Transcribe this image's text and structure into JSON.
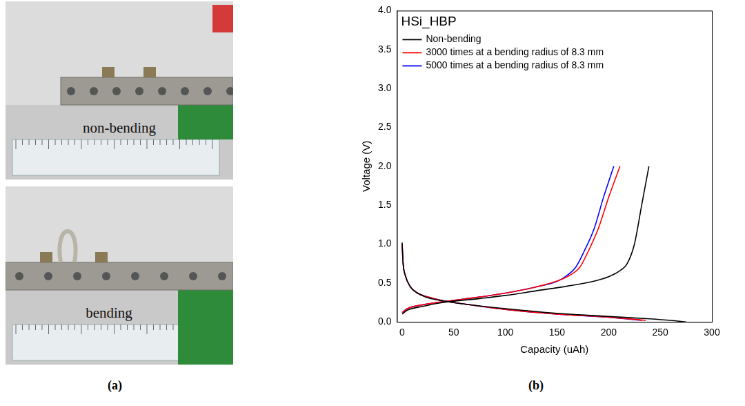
{
  "photo": {
    "captions": [
      "non-bending",
      "bending"
    ]
  },
  "panel_labels": [
    "(a)",
    "(b)"
  ],
  "chart_data": {
    "type": "line",
    "title": "HSi_HBP",
    "x_label": "Capacity (uAh)",
    "y_label": "Voltage (V)",
    "xlim": [
      -5,
      300
    ],
    "xticks": [
      0,
      50,
      100,
      150,
      200,
      250,
      300
    ],
    "ylim": [
      0,
      4
    ],
    "yticks": [
      {
        "value": 0,
        "label": "0.0"
      },
      0.5,
      {
        "value": 1,
        "label": "1.0"
      },
      1.5,
      {
        "value": 2,
        "label": "2.0"
      },
      2.5,
      {
        "value": 3,
        "label": "3.0"
      },
      3.5,
      {
        "value": 4,
        "label": "4.0"
      }
    ],
    "grid": false,
    "legend": "upper left",
    "series": [
      {
        "name": "Non-bending",
        "color": "#000000",
        "discharge": {
          "x": [
            0,
            1,
            3,
            8,
            15,
            25,
            40,
            60,
            100,
            150,
            200,
            240,
            260,
            275
          ],
          "values": [
            1.02,
            0.75,
            0.6,
            0.45,
            0.37,
            0.31,
            0.27,
            0.23,
            0.17,
            0.11,
            0.07,
            0.04,
            0.02,
            0.0
          ]
        },
        "charge": {
          "x": [
            0,
            5,
            20,
            40,
            75,
            100,
            130,
            160,
            185,
            200,
            210,
            218,
            225,
            232,
            239
          ],
          "values": [
            0.1,
            0.15,
            0.2,
            0.25,
            0.3,
            0.34,
            0.4,
            0.46,
            0.52,
            0.58,
            0.65,
            0.75,
            1.0,
            1.5,
            2.0
          ]
        }
      },
      {
        "name": "3000 times at a bending radius of 8.3 mm",
        "color": "#ff0000",
        "discharge": {
          "x": [
            0,
            1,
            3,
            8,
            15,
            25,
            40,
            60,
            100,
            150,
            200,
            236
          ],
          "values": [
            1.0,
            0.75,
            0.6,
            0.45,
            0.37,
            0.32,
            0.27,
            0.23,
            0.16,
            0.1,
            0.06,
            0.02
          ]
        },
        "charge": {
          "x": [
            0,
            5,
            20,
            40,
            75,
            100,
            130,
            155,
            165,
            172,
            180,
            190,
            200,
            211
          ],
          "values": [
            0.12,
            0.17,
            0.22,
            0.26,
            0.32,
            0.37,
            0.45,
            0.55,
            0.62,
            0.7,
            0.9,
            1.2,
            1.6,
            2.0
          ]
        }
      },
      {
        "name": "5000 times at a bending radius of 8.3 mm",
        "color": "#0000ff",
        "discharge": {
          "x": [
            0,
            1,
            3,
            8,
            15,
            25,
            40,
            60,
            100,
            150,
            200,
            232
          ],
          "values": [
            1.0,
            0.74,
            0.6,
            0.45,
            0.37,
            0.32,
            0.27,
            0.23,
            0.16,
            0.1,
            0.06,
            0.02
          ]
        },
        "charge": {
          "x": [
            0,
            5,
            20,
            40,
            75,
            100,
            130,
            150,
            160,
            168,
            176,
            186,
            195,
            205
          ],
          "values": [
            0.12,
            0.17,
            0.22,
            0.26,
            0.32,
            0.37,
            0.45,
            0.52,
            0.6,
            0.7,
            0.9,
            1.2,
            1.6,
            2.0
          ]
        }
      }
    ]
  }
}
